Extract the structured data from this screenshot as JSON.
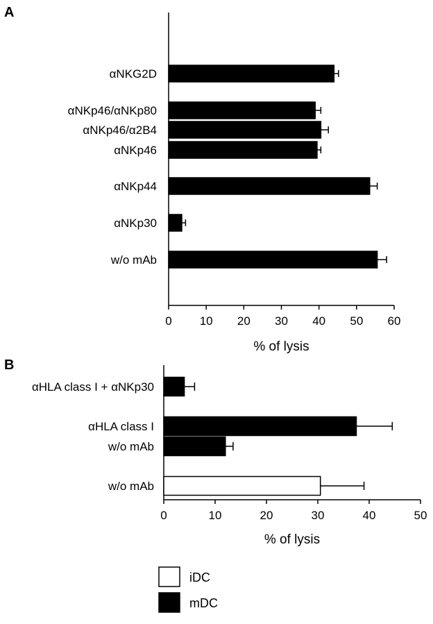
{
  "colors": {
    "mDC": "#000000",
    "iDC": "#ffffff"
  },
  "chart_data": [
    {
      "type": "bar",
      "orientation": "horizontal",
      "panel_label": "A",
      "xlabel": "% of lysis",
      "xlim": [
        0,
        60
      ],
      "xticks": [
        "0",
        "10",
        "20",
        "30",
        "40",
        "50",
        "60"
      ],
      "grid": false,
      "bars": [
        {
          "label": "αNKG2D",
          "value": 44,
          "error": 1.2,
          "series": "mDC"
        },
        {
          "label": "αNKp46/αNKp80",
          "value": 39,
          "error": 1.5,
          "series": "mDC"
        },
        {
          "label": "αNKp46/α2B4",
          "value": 40.5,
          "error": 2,
          "series": "mDC"
        },
        {
          "label": "αNKp46",
          "value": 39.5,
          "error": 1,
          "series": "mDC"
        },
        {
          "label": "αNKp44",
          "value": 53.5,
          "error": 2,
          "series": "mDC"
        },
        {
          "label": "αNKp30",
          "value": 3.5,
          "error": 1,
          "series": "mDC"
        },
        {
          "label": "w/o mAb",
          "value": 55.5,
          "error": 2.5,
          "series": "mDC"
        }
      ]
    },
    {
      "type": "bar",
      "orientation": "horizontal",
      "panel_label": "B",
      "xlabel": "% of lysis",
      "xlim": [
        0,
        50
      ],
      "xticks": [
        "0",
        "10",
        "20",
        "30",
        "40",
        "50"
      ],
      "grid": false,
      "bars": [
        {
          "label": "αHLA class I + αNKp30",
          "value": 4,
          "error": 2,
          "series": "mDC"
        },
        {
          "label": "αHLA class I",
          "value": 37.5,
          "error": 7,
          "series": "mDC"
        },
        {
          "label": "w/o mAb",
          "value": 12,
          "error": 1.5,
          "series": "mDC"
        },
        {
          "label": "w/o mAb",
          "value": 30.5,
          "error": 8.5,
          "series": "iDC"
        }
      ]
    }
  ],
  "legend": {
    "position": "bottom-center",
    "entries": [
      {
        "name": "iDC",
        "series": "iDC"
      },
      {
        "name": "mDC",
        "series": "mDC"
      }
    ]
  }
}
